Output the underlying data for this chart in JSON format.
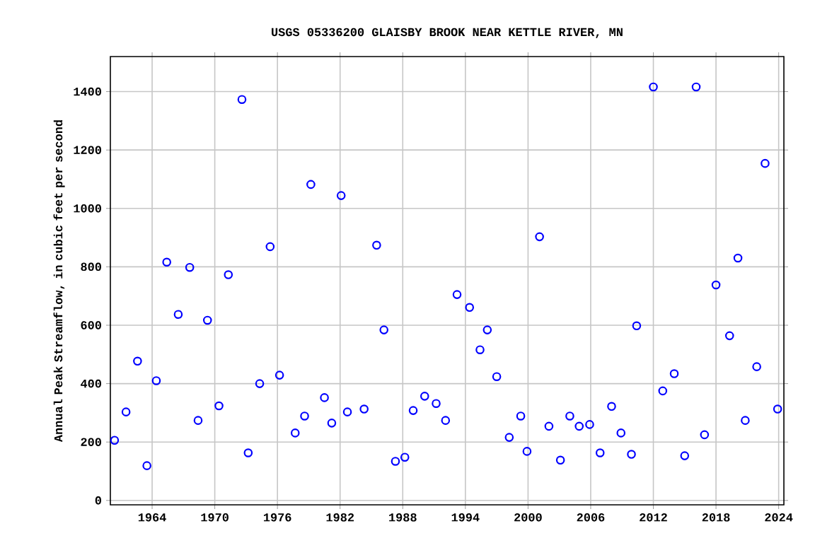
{
  "chart_data": {
    "type": "scatter",
    "title": "USGS 05336200 GLAISBY BROOK NEAR KETTLE RIVER, MN",
    "ylabel": "Annual Peak Streamflow, in cubic feet per second",
    "x": [
      1960.4,
      1961.5,
      1962.6,
      1963.5,
      1964.4,
      1965.4,
      1966.5,
      1967.6,
      1968.4,
      1969.3,
      1970.4,
      1971.3,
      1972.6,
      1973.2,
      1974.3,
      1975.3,
      1976.2,
      1977.7,
      1978.6,
      1979.2,
      1980.5,
      1981.2,
      1982.1,
      1982.7,
      1984.3,
      1985.5,
      1986.2,
      1987.3,
      1988.2,
      1989.0,
      1990.1,
      1991.2,
      1992.1,
      1993.2,
      1994.4,
      1995.4,
      1996.1,
      1997.0,
      1998.2,
      1999.3,
      1999.9,
      2001.1,
      2002.0,
      2003.1,
      2004.0,
      2004.9,
      2005.9,
      2006.9,
      2008.0,
      2008.9,
      2009.9,
      2010.4,
      2012.0,
      2012.9,
      2014.0,
      2015.0,
      2016.1,
      2016.9,
      2018.0,
      2019.3,
      2020.1,
      2020.8,
      2021.9,
      2022.7,
      2023.9
    ],
    "series": [
      {
        "color": "#0000ff",
        "values": [
          206,
          303,
          477,
          119,
          410,
          816,
          637,
          798,
          274,
          617,
          324,
          773,
          1373,
          163,
          400,
          869,
          429,
          231,
          289,
          1082,
          352,
          265,
          1044,
          303,
          313,
          874,
          584,
          134,
          148,
          308,
          357,
          332,
          274,
          705,
          661,
          516,
          584,
          424,
          216,
          289,
          168,
          903,
          254,
          138,
          289,
          254,
          260,
          163,
          322,
          231,
          158,
          598,
          1416,
          375,
          434,
          153,
          1416,
          225,
          738,
          564,
          830,
          274,
          458,
          1154,
          313
        ]
      }
    ],
    "xlim": [
      1960,
      2024.5
    ],
    "ylim": [
      -15,
      1520
    ],
    "xticks": [
      1964,
      1970,
      1976,
      1982,
      1988,
      1994,
      2000,
      2006,
      2012,
      2018,
      2024
    ],
    "yticks": [
      0,
      200,
      400,
      600,
      800,
      1000,
      1200,
      1400
    ],
    "grid": true,
    "marker": "circle"
  }
}
